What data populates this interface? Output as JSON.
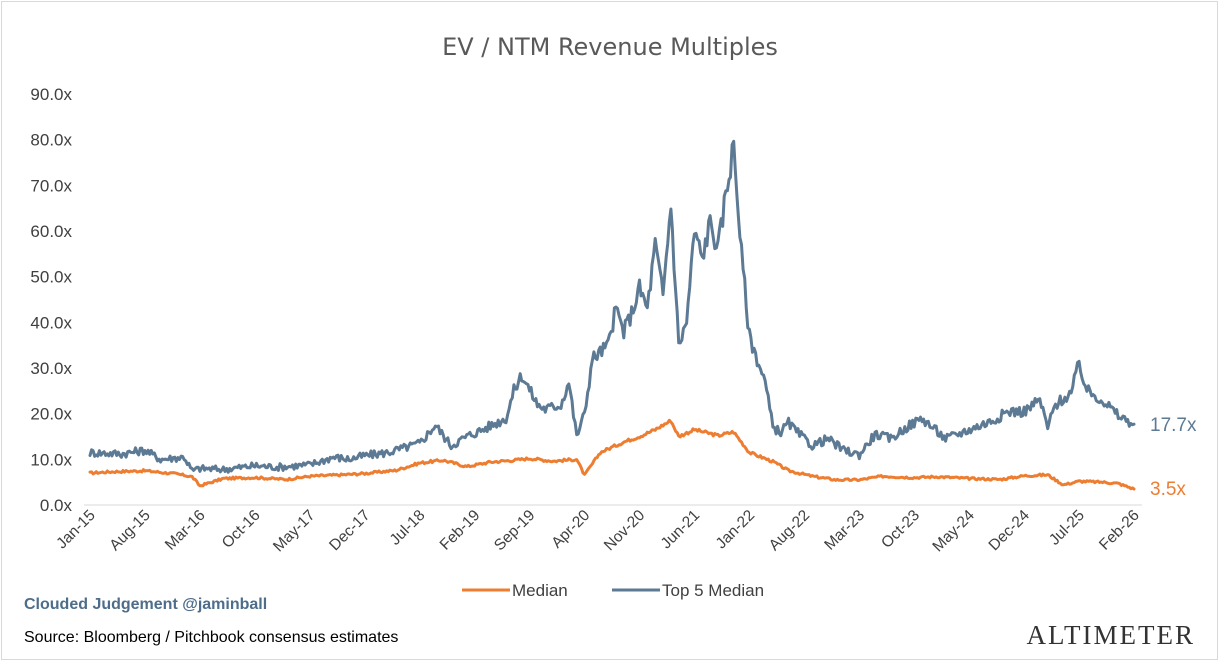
{
  "chart_data": {
    "type": "line",
    "title": "EV / NTM Revenue Multiples",
    "ylim": [
      0,
      90
    ],
    "ytick_labels": [
      "0.0x",
      "10.0x",
      "20.0x",
      "30.0x",
      "40.0x",
      "50.0x",
      "60.0x",
      "70.0x",
      "80.0x",
      "90.0x"
    ],
    "ytick_values": [
      0,
      10,
      20,
      30,
      40,
      50,
      60,
      70,
      80,
      90
    ],
    "xtick_labels": [
      "Jan-15",
      "Aug-15",
      "Mar-16",
      "Oct-16",
      "May-17",
      "Dec-17",
      "Jul-18",
      "Feb-19",
      "Sep-19",
      "Apr-20",
      "Nov-20",
      "Jun-21",
      "Jan-22",
      "Aug-22",
      "Mar-23",
      "Oct-23",
      "May-24",
      "Dec-24",
      "Jul-25",
      "Feb-26"
    ],
    "grid": false,
    "legend_position": "bottom",
    "series": [
      {
        "name": "Median",
        "color": "#ed7d31",
        "end_label": "3.5x",
        "x": [
          "2015-01",
          "2015-04",
          "2015-08",
          "2015-12",
          "2016-02",
          "2016-03",
          "2016-06",
          "2016-10",
          "2017-02",
          "2017-05",
          "2017-09",
          "2017-12",
          "2018-04",
          "2018-07",
          "2018-10",
          "2019-01",
          "2019-04",
          "2019-07",
          "2019-09",
          "2019-12",
          "2020-03",
          "2020-04",
          "2020-06",
          "2020-09",
          "2020-11",
          "2021-01",
          "2021-03",
          "2021-04",
          "2021-06",
          "2021-09",
          "2021-11",
          "2022-01",
          "2022-04",
          "2022-06",
          "2022-09",
          "2022-12",
          "2023-03",
          "2023-06",
          "2023-10",
          "2024-01",
          "2024-05",
          "2024-09",
          "2024-12",
          "2025-03",
          "2025-05",
          "2025-07",
          "2025-10",
          "2025-12",
          "2026-02"
        ],
        "values": [
          7.0,
          7.3,
          7.5,
          6.8,
          6.2,
          4.2,
          5.8,
          6.0,
          5.6,
          6.3,
          6.6,
          6.9,
          7.6,
          9.2,
          9.8,
          8.4,
          9.4,
          9.8,
          10.2,
          9.6,
          10.0,
          6.5,
          11.5,
          13.8,
          15.0,
          16.5,
          18.5,
          15.0,
          16.5,
          15.2,
          16.0,
          11.5,
          9.5,
          7.5,
          6.3,
          5.5,
          5.5,
          6.3,
          6.0,
          6.2,
          5.8,
          5.6,
          6.4,
          6.6,
          4.4,
          5.2,
          5.0,
          4.7,
          3.5
        ]
      },
      {
        "name": "Top 5 Median",
        "color": "#5d7a94",
        "end_label": "17.7x",
        "x": [
          "2015-01",
          "2015-05",
          "2015-08",
          "2015-10",
          "2016-01",
          "2016-02",
          "2016-03",
          "2016-06",
          "2016-10",
          "2017-01",
          "2017-05",
          "2017-08",
          "2017-10",
          "2017-12",
          "2018-03",
          "2018-07",
          "2018-09",
          "2018-11",
          "2019-01",
          "2019-03",
          "2019-06",
          "2019-07",
          "2019-08",
          "2019-10",
          "2019-11",
          "2020-01",
          "2020-02",
          "2020-03",
          "2020-04",
          "2020-05",
          "2020-07",
          "2020-08",
          "2020-09",
          "2020-10",
          "2020-11",
          "2020-12",
          "2021-01",
          "2021-02",
          "2021-03",
          "2021-04",
          "2021-05",
          "2021-06",
          "2021-07",
          "2021-08",
          "2021-09",
          "2021-10",
          "2021-11",
          "2021-12",
          "2022-01",
          "2022-02",
          "2022-03",
          "2022-04",
          "2022-05",
          "2022-06",
          "2022-07",
          "2022-09",
          "2022-11",
          "2023-01",
          "2023-03",
          "2023-05",
          "2023-07",
          "2023-09",
          "2023-11",
          "2024-02",
          "2024-05",
          "2024-08",
          "2024-10",
          "2024-12",
          "2025-02",
          "2025-03",
          "2025-04",
          "2025-06",
          "2025-07",
          "2025-08",
          "2025-10",
          "2025-12",
          "2026-02"
        ],
        "values": [
          11.5,
          11.2,
          12.0,
          10.0,
          10.5,
          7.5,
          8.0,
          7.8,
          8.6,
          8.3,
          8.8,
          10.5,
          10.0,
          10.8,
          11.5,
          13.5,
          17.5,
          13.0,
          15.0,
          16.5,
          19.0,
          25.0,
          28.5,
          22.0,
          21.0,
          22.0,
          27.0,
          15.0,
          20.0,
          32.0,
          35.0,
          43.0,
          38.0,
          42.0,
          47.5,
          43.0,
          57.0,
          46.0,
          66.0,
          35.0,
          40.0,
          60.0,
          54.0,
          62.0,
          56.0,
          68.0,
          79.0,
          55.0,
          37.0,
          32.0,
          27.0,
          17.0,
          16.0,
          18.0,
          16.0,
          13.0,
          14.5,
          12.0,
          11.0,
          15.5,
          14.5,
          17.0,
          19.0,
          14.5,
          16.5,
          18.5,
          20.5,
          20.5,
          23.0,
          17.0,
          22.0,
          24.5,
          31.0,
          25.0,
          23.0,
          19.5,
          17.7
        ]
      }
    ]
  },
  "credit": "Clouded Judgement @jaminball",
  "source": "Source: Bloomberg / Pitchbook consensus estimates",
  "brand": "ALTIMETER"
}
